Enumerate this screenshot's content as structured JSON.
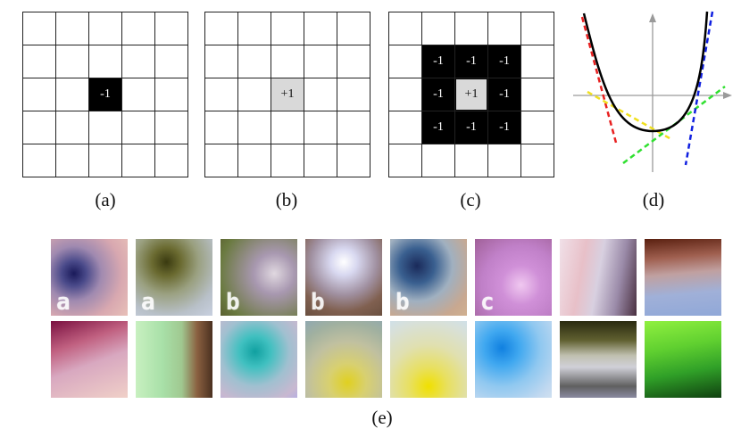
{
  "panels": {
    "a": {
      "caption": "(a)",
      "center_value": "-1"
    },
    "b": {
      "caption": "(b)",
      "center_value": "+1"
    },
    "c": {
      "caption": "(c)",
      "center_value": "+1",
      "surround_value": "-1"
    },
    "d": {
      "caption": "(d)"
    },
    "e": {
      "caption": "(e)"
    }
  },
  "patches": {
    "row1": [
      {
        "label": "a",
        "gradient": "radial-gradient(circle at 30% 45%, #1a1a5a 0%, #4a4a8a 18%, #a08ab0 40%, #d8a8b0 70%, #e8c0b8 100%)"
      },
      {
        "label": "a",
        "gradient": "radial-gradient(circle at 40% 30%, #3a3a10 0%, #6a6a30 20%, #9aa080 45%, #b8c0c8 75%, #c8d0e0 100%)"
      },
      {
        "label": "b",
        "gradient": "radial-gradient(circle at 70% 45%, #e0d8e0 0%, #a898b0 30%, #8a8878 55%, #6a7a40 80%, #5a6030 100%)"
      },
      {
        "label": "b",
        "gradient": "radial-gradient(circle at 50% 30%, #ffffff 0%, #d8d8f0 20%, #a090a0 50%, #806050 75%, #6a5040 100%)"
      },
      {
        "label": "b",
        "gradient": "radial-gradient(circle at 35% 35%, #1a2a5a 0%, #3a6090 25%, #a0b0c0 50%, #c8a890 80%, #d0b090 100%)"
      },
      {
        "label": "c",
        "gradient": "radial-gradient(circle at 60% 60%, #f0c8f0 0%, #d090d8 30%, #c080c8 60%, #a06098 100%)"
      },
      {
        "label": "",
        "gradient": "linear-gradient(100deg, #f0e0e8 0%, #e8c0c8 30%, #d8d0e0 50%, #9a8aa8 75%, #4a3040 100%)"
      },
      {
        "label": "",
        "gradient": "linear-gradient(175deg, #5a2010 0%, #a06050 25%, #c0a0a0 45%, #a0b0d8 70%, #90a8d8 100%)"
      }
    ],
    "row2": [
      {
        "label": "",
        "gradient": "linear-gradient(160deg, #7a1040 0%, #c06080 30%, #d8a8c0 55%, #f0d0c8 100%)"
      },
      {
        "label": "",
        "gradient": "linear-gradient(90deg, #c8f0c0 0%, #a8e0a8 35%, #a0c890 60%, #8a6040 80%, #4a3020 100%)"
      },
      {
        "label": "",
        "gradient": "radial-gradient(circle at 45% 40%, #10a0a0 0%, #40c0c0 25%, #a0c0d0 55%, #c8b8d0 85%, #b8b0e0 100%)"
      },
      {
        "label": "",
        "gradient": "radial-gradient(circle at 55% 80%, #e0d020 0%, #d8d070 25%, #c0c0a0 55%, #a0b0a0 80%, #90a8b0 100%)"
      },
      {
        "label": "",
        "gradient": "radial-gradient(circle at 50% 85%, #f0e000 0%, #e8e060 25%, #e0e0b0 55%, #d8e0d8 85%, #d0e0e8 100%)"
      },
      {
        "label": "",
        "gradient": "radial-gradient(circle at 35% 35%, #1080e0 0%, #40a8f0 25%, #90c8f0 55%, #c0d8f0 85%, #d0e0f0 100%)"
      },
      {
        "label": "",
        "gradient": "linear-gradient(180deg, #2a2a10 0%, #606030 25%, #c0c0b0 45%, #d0d0d8 60%, #606060 85%, #8a8aa0 100%)"
      },
      {
        "label": "",
        "gradient": "linear-gradient(170deg, #90f040 0%, #60d030 35%, #30a028 65%, #104010 100%)"
      }
    ]
  },
  "colors": {
    "neg_cell": "#000000",
    "pos_cell": "#d9d9d9",
    "curve": "#000000",
    "tangent_red": "#e82020",
    "tangent_yellow": "#f0e020",
    "tangent_green": "#30e030",
    "tangent_blue": "#1020e0",
    "axis": "#9a9a9a"
  }
}
